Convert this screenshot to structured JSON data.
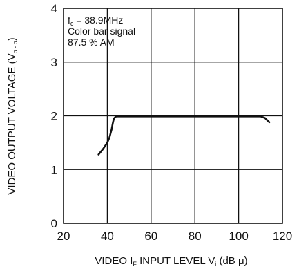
{
  "chart_data": {
    "type": "line",
    "xlabel": {
      "main": "VIDEO ",
      "if_letter": "I",
      "if_sub": "F",
      "rest": "  INPUT  LEVEL  V",
      "vi_sub": "i",
      "unit": " (dB μ)"
    },
    "ylabel": {
      "main": "VIDEO OUTPUT VOLTAGE (V",
      "sub": "p - p",
      "close": ")"
    },
    "xlim": [
      20,
      120
    ],
    "ylim": [
      0,
      4
    ],
    "xticks": [
      "20",
      "40",
      "60",
      "80",
      "100",
      "120"
    ],
    "yticks": [
      "0",
      "1",
      "2",
      "3",
      "4"
    ],
    "grid": true,
    "annotation": {
      "line1_f": "f",
      "line1_sub": "c",
      "line1_rest": " = 38.9MHz",
      "line2": "Color  bar  signal",
      "line3": "87.5 % AM"
    },
    "series": [
      {
        "x": [
          36,
          38,
          40,
          41,
          42,
          42.5,
          43,
          44,
          50,
          60,
          80,
          100,
          110,
          112,
          114
        ],
        "y": [
          1.28,
          1.38,
          1.5,
          1.6,
          1.75,
          1.86,
          1.95,
          1.99,
          1.99,
          1.99,
          1.99,
          1.99,
          1.99,
          1.96,
          1.88
        ]
      }
    ],
    "colors": {
      "line": "#111111",
      "grid": "#111111"
    }
  }
}
